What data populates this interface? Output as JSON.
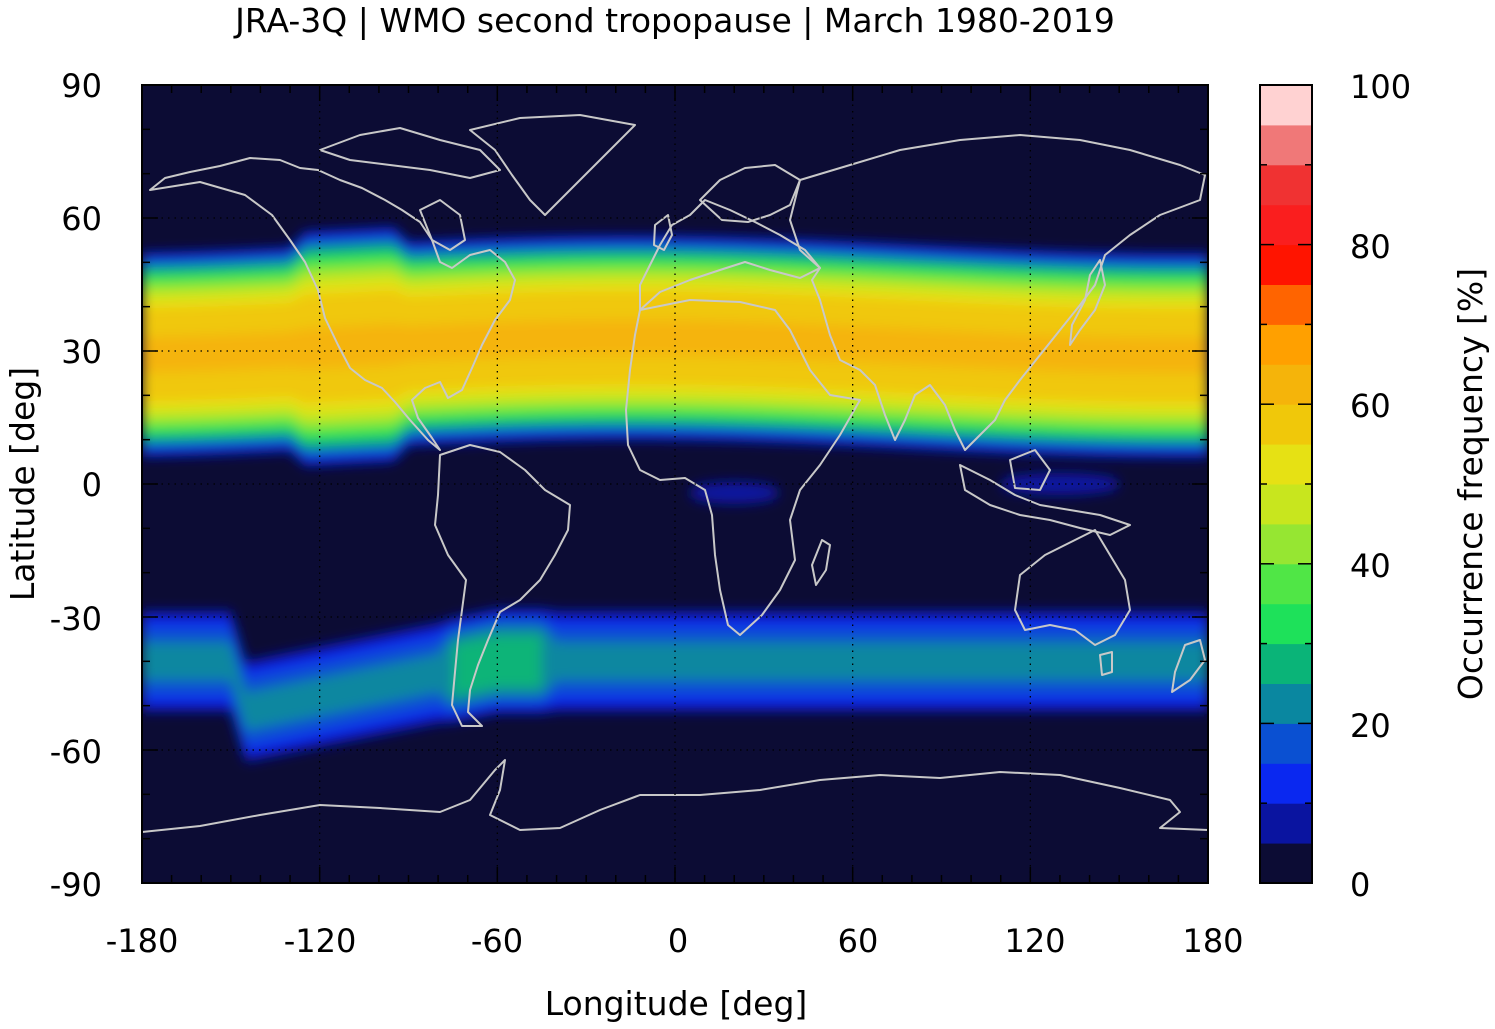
{
  "chart_data": {
    "type": "heatmap",
    "title": "JRA-3Q | WMO second tropopause | March 1980-2019",
    "xlabel": "Longitude [deg]",
    "ylabel": "Latitude [deg]",
    "xlim": [
      -180,
      180
    ],
    "ylim": [
      -90,
      90
    ],
    "xticks": [
      "-180",
      "-120",
      "-60",
      "0",
      "60",
      "120",
      "180"
    ],
    "yticks": [
      "90",
      "60",
      "30",
      "0",
      "-30",
      "-60",
      "-90"
    ],
    "background_color": "#0c0c34",
    "coastline_color": "#c8c8c8",
    "grid": "dotted at 30 deg latitude and 60 deg longitude",
    "colorbar": {
      "label": "Occurrence frequency [%]",
      "range": [
        0,
        100
      ],
      "ticks": [
        "0",
        "20",
        "40",
        "60",
        "80",
        "100"
      ],
      "levels": [
        {
          "from": 0,
          "to": 5,
          "color": "#0c0c34"
        },
        {
          "from": 5,
          "to": 10,
          "color": "#0a14a0"
        },
        {
          "from": 10,
          "to": 15,
          "color": "#0a28f0"
        },
        {
          "from": 15,
          "to": 20,
          "color": "#0a50d2"
        },
        {
          "from": 20,
          "to": 25,
          "color": "#0a87a0"
        },
        {
          "from": 25,
          "to": 30,
          "color": "#0ab478"
        },
        {
          "from": 30,
          "to": 35,
          "color": "#1ee15a"
        },
        {
          "from": 35,
          "to": 40,
          "color": "#50e646"
        },
        {
          "from": 40,
          "to": 45,
          "color": "#96e632"
        },
        {
          "from": 45,
          "to": 50,
          "color": "#c8e61e"
        },
        {
          "from": 50,
          "to": 55,
          "color": "#e6e114"
        },
        {
          "from": 55,
          "to": 60,
          "color": "#f0c80a"
        },
        {
          "from": 60,
          "to": 65,
          "color": "#f5b40a"
        },
        {
          "from": 65,
          "to": 70,
          "color": "#ffa000"
        },
        {
          "from": 70,
          "to": 75,
          "color": "#ff6400"
        },
        {
          "from": 75,
          "to": 80,
          "color": "#ff1400"
        },
        {
          "from": 80,
          "to": 85,
          "color": "#fa1e1e"
        },
        {
          "from": 85,
          "to": 90,
          "color": "#f03232"
        },
        {
          "from": 90,
          "to": 95,
          "color": "#f07878"
        },
        {
          "from": 95,
          "to": 100,
          "color": "#ffd2d2"
        }
      ]
    },
    "bands": [
      {
        "lat_center": 31,
        "lon_range": [
          -180,
          180
        ],
        "peak_frequency": 65
      },
      {
        "lat_center": -40,
        "lon_range": [
          -180,
          180
        ],
        "peak_frequency": 30
      },
      {
        "lat_center": 0,
        "lon_range": [
          110,
          150
        ],
        "peak_frequency": 10
      },
      {
        "lat_center": -2,
        "lon_range": [
          5,
          35
        ],
        "peak_frequency": 10
      }
    ]
  }
}
